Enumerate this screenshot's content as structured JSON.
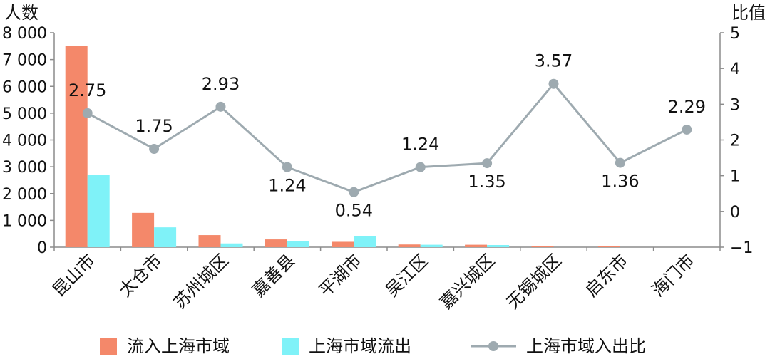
{
  "chart_data": {
    "type": "bar+line",
    "y_left_label": "人数",
    "y_right_label": "比值",
    "categories": [
      "昆山市",
      "太仓市",
      "苏州城区",
      "嘉善县",
      "平湖市",
      "吴江区",
      "嘉兴城区",
      "无锡城区",
      "启东市",
      "海门市"
    ],
    "y_left_ticks": [
      "0",
      "1 000",
      "2 000",
      "3 000",
      "4 000",
      "5 000",
      "6 000",
      "7 000",
      "8 000"
    ],
    "y_right_ticks": [
      "−1",
      "0",
      "1",
      "2",
      "3",
      "4",
      "5"
    ],
    "y_left_lim": [
      0,
      8000
    ],
    "y_right_lim": [
      -1,
      5
    ],
    "series": [
      {
        "name": "流入上海市域",
        "kind": "bar",
        "color": "#F4886A",
        "values": [
          7500,
          1280,
          450,
          290,
          200,
          100,
          90,
          40,
          30,
          0
        ]
      },
      {
        "name": "上海市域流出",
        "kind": "bar",
        "color": "#7FF2F8",
        "values": [
          2700,
          740,
          140,
          230,
          420,
          90,
          80,
          0,
          0,
          0
        ]
      },
      {
        "name": "上海市域入出比",
        "kind": "line",
        "color": "#9EAAB0",
        "values": [
          2.75,
          1.75,
          2.93,
          1.24,
          0.54,
          1.24,
          1.35,
          3.57,
          1.36,
          2.29
        ],
        "labels": [
          "2.75",
          "1.75",
          "2.93",
          "1.24",
          "0.54",
          "1.24",
          "1.35",
          "3.57",
          "1.36",
          "2.29"
        ],
        "label_positions": [
          "above",
          "above",
          "above",
          "below",
          "below",
          "above",
          "below",
          "above",
          "below",
          "above"
        ]
      }
    ],
    "legend_position": "bottom",
    "grid": false
  }
}
